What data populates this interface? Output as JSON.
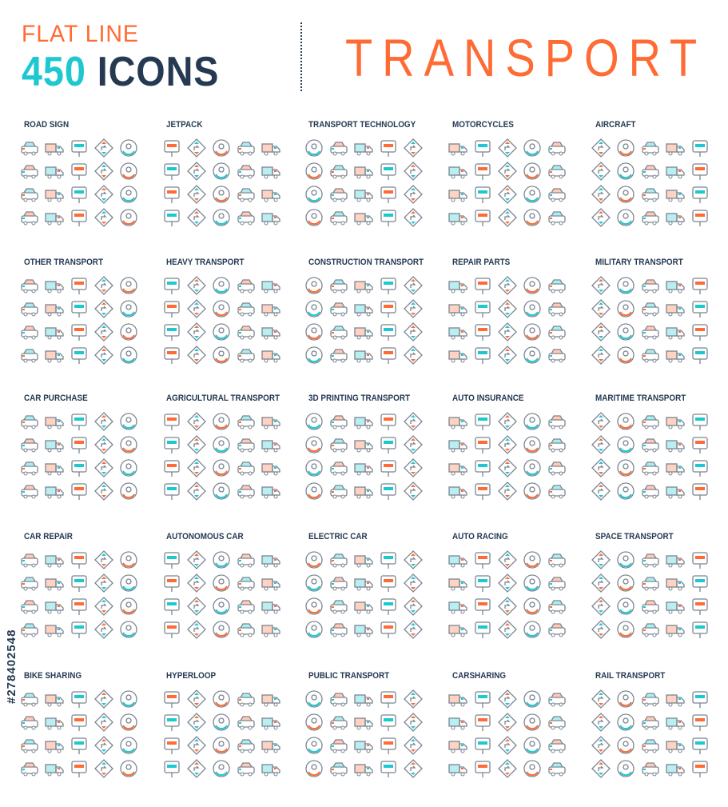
{
  "header": {
    "subtitle": "FLAT LINE",
    "count": "450",
    "icons_word": "ICONS",
    "title": "TRANSPORT"
  },
  "colors": {
    "accent_orange": "#ff6b35",
    "accent_teal": "#1ec8d0",
    "dark": "#253a52",
    "line": "#7a8591"
  },
  "categories": [
    {
      "label": "ROAD SIGN"
    },
    {
      "label": "JETPACK"
    },
    {
      "label": "TRANSPORT TECHNOLOGY"
    },
    {
      "label": "MOTORCYCLES"
    },
    {
      "label": "AIRCRAFT"
    },
    {
      "label": "OTHER TRANSPORT"
    },
    {
      "label": "HEAVY TRANSPORT"
    },
    {
      "label": "CONSTRUCTION TRANSPORT"
    },
    {
      "label": "REPAIR PARTS"
    },
    {
      "label": "MILITARY TRANSPORT"
    },
    {
      "label": "CAR PURCHASE"
    },
    {
      "label": "AGRICULTURAL TRANSPORT"
    },
    {
      "label": "3D PRINTING TRANSPORT"
    },
    {
      "label": "AUTO INSURANCE"
    },
    {
      "label": "MARITIME TRANSPORT"
    },
    {
      "label": "CAR REPAIR"
    },
    {
      "label": "AUTONOMOUS CAR"
    },
    {
      "label": "ELECTRIC CAR"
    },
    {
      "label": "AUTO RACING"
    },
    {
      "label": "SPACE TRANSPORT"
    },
    {
      "label": "BIKE SHARING"
    },
    {
      "label": "HYPERLOOP"
    },
    {
      "label": "PUBLIC TRANSPORT"
    },
    {
      "label": "CARSHARING"
    },
    {
      "label": "RAIL TRANSPORT"
    }
  ],
  "icon_shapes": [
    "car-icon",
    "sign-icon",
    "circle-icon",
    "truck-icon",
    "diamond-icon"
  ],
  "watermark": "#278402548"
}
